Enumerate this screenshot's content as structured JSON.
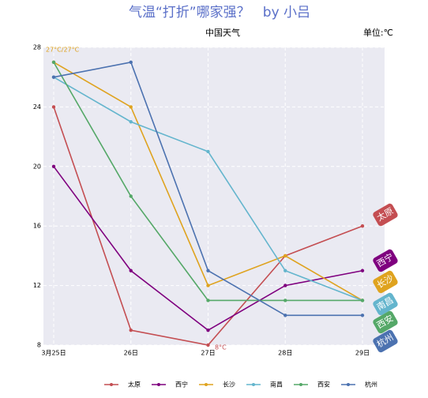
{
  "chart_data": {
    "type": "line",
    "title": "气温“打折”哪家强？   by 小吕",
    "subtitle": "中国天气",
    "unit_label": "单位:℃",
    "categories": [
      "3月25日",
      "26日",
      "27日",
      "28日",
      "29日"
    ],
    "series": [
      {
        "name": "太原",
        "color": "#c44e52",
        "values": [
          24,
          9,
          8,
          14,
          16
        ]
      },
      {
        "name": "西宁",
        "color": "#7f007f",
        "values": [
          20,
          13,
          9,
          12,
          13
        ]
      },
      {
        "name": "长沙",
        "color": "#dfa31f",
        "values": [
          27,
          24,
          12,
          14,
          11
        ]
      },
      {
        "name": "南昌",
        "color": "#64b5cd",
        "values": [
          26,
          23,
          21,
          13,
          11
        ]
      },
      {
        "name": "西安",
        "color": "#55a868",
        "values": [
          27,
          18,
          11,
          11,
          11
        ]
      },
      {
        "name": "杭州",
        "color": "#4c72b0",
        "values": [
          26,
          27,
          13,
          10,
          10
        ]
      }
    ],
    "annotations": [
      {
        "text": "27°C/27°C",
        "color": "#dfa31f"
      },
      {
        "text": "8°C",
        "color": "#c44e52"
      }
    ],
    "ylim": [
      8,
      28
    ],
    "yticks": [
      8,
      12,
      16,
      20,
      24,
      28
    ],
    "grid": true
  }
}
